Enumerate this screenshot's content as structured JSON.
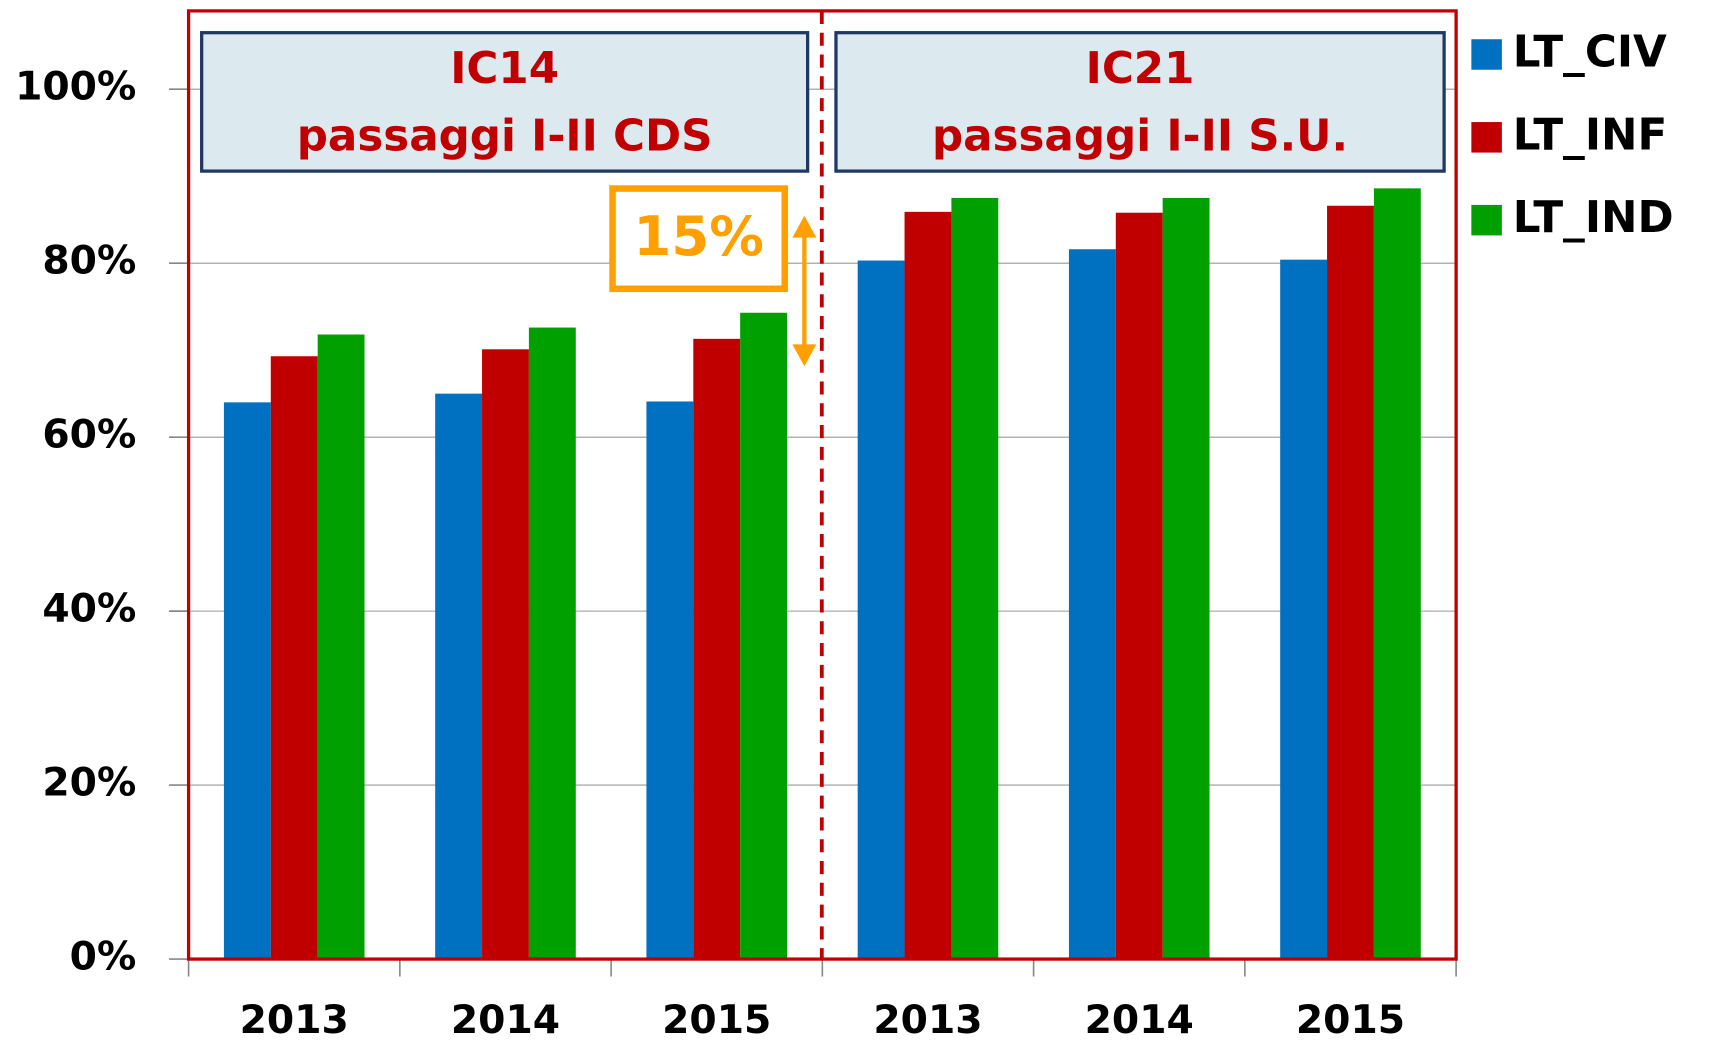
{
  "chart_data": {
    "type": "bar",
    "categories": [
      "2013",
      "2014",
      "2015",
      "2013",
      "2014",
      "2015"
    ],
    "series": [
      {
        "name": "LT_CIV",
        "color": "#0070c0",
        "values": [
          64.0,
          65.0,
          64.1,
          80.3,
          81.6,
          80.4
        ]
      },
      {
        "name": "LT_INF",
        "color": "#c00000",
        "values": [
          69.3,
          70.1,
          71.3,
          85.9,
          85.8,
          86.6
        ]
      },
      {
        "name": "LT_IND",
        "color": "#00a000",
        "values": [
          71.8,
          72.6,
          74.3,
          87.5,
          87.5,
          88.6
        ]
      }
    ],
    "ylim": [
      0,
      109
    ],
    "yticks": [
      {
        "value": 0,
        "label": "0%"
      },
      {
        "value": 20,
        "label": "20%"
      },
      {
        "value": 40,
        "label": "40%"
      },
      {
        "value": 60,
        "label": "60%"
      },
      {
        "value": 80,
        "label": "80%"
      },
      {
        "value": 100,
        "label": "100%"
      }
    ],
    "grid": true,
    "legend": "right",
    "annotations": [
      "IC14",
      "passaggi I-II CDS",
      "IC21",
      "passaggi I-II S.U.",
      "15%"
    ]
  }
}
